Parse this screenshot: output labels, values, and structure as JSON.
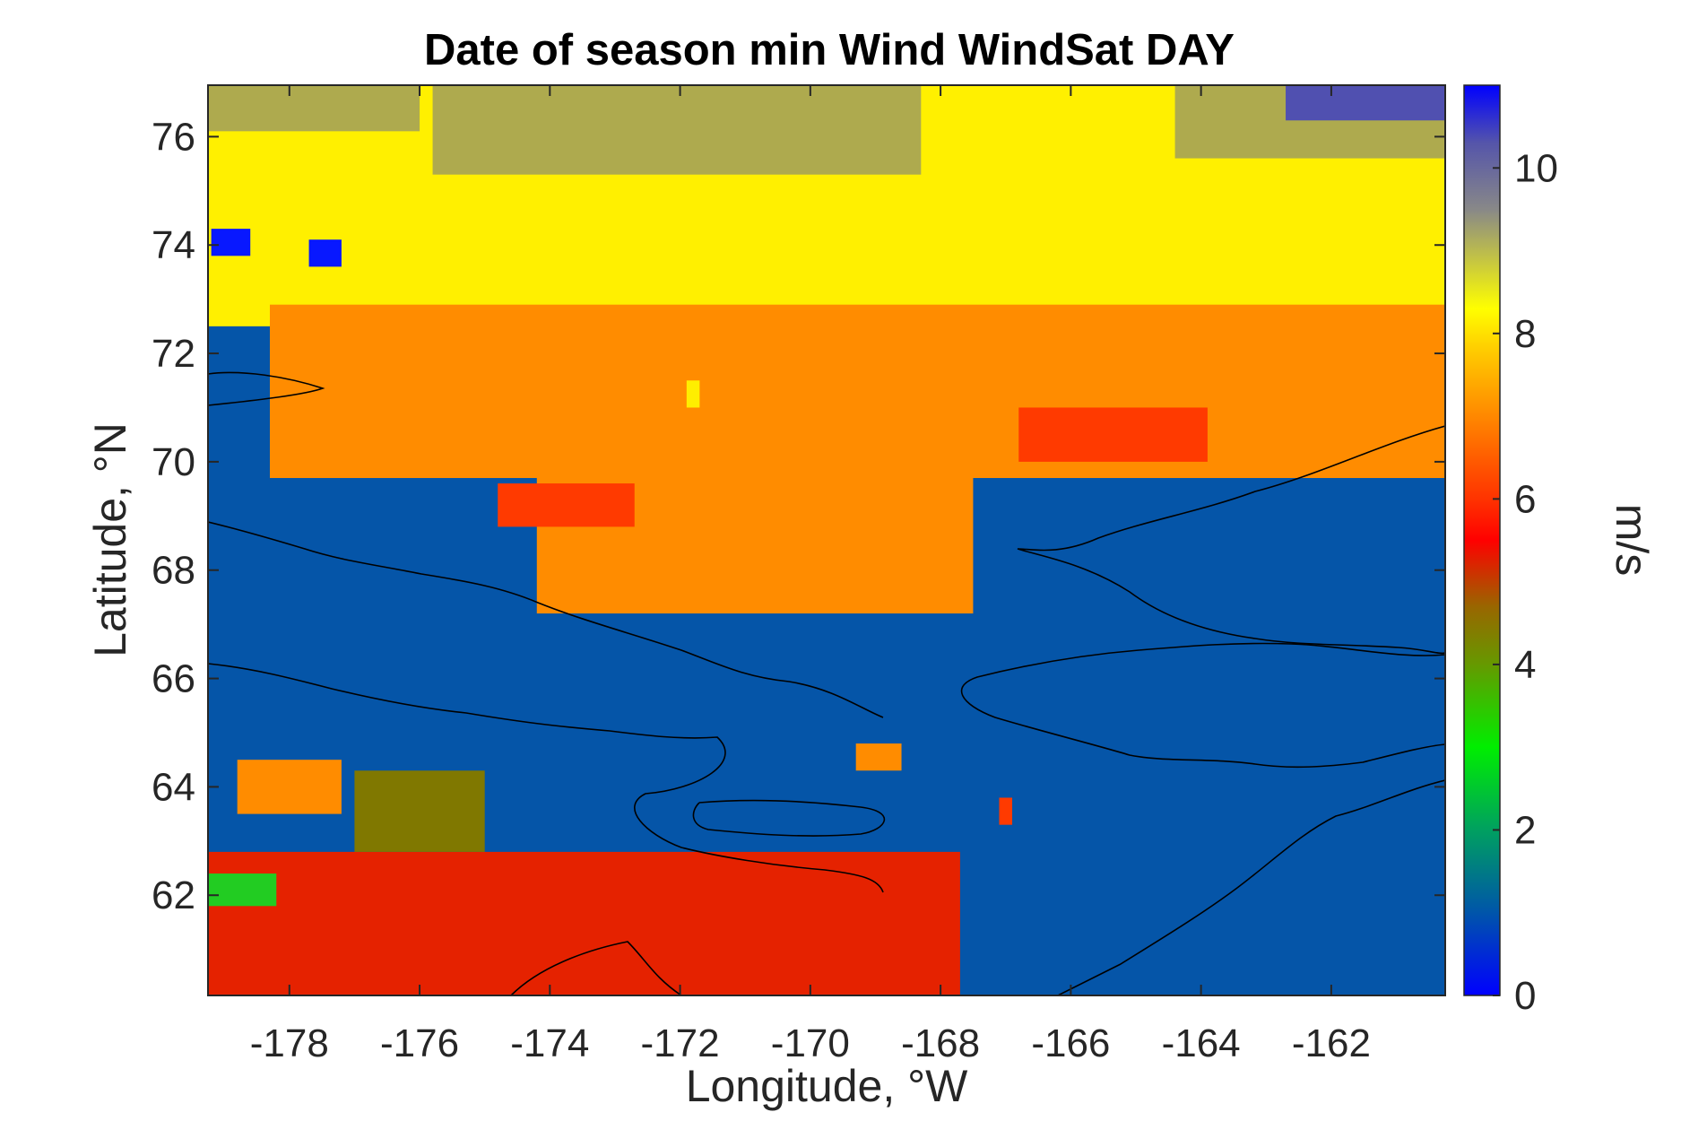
{
  "chart_data": {
    "type": "heatmap",
    "title": "Date of season min Wind WindSat DAY",
    "xlabel": "Longitude, °W",
    "ylabel": "Latitude, °N",
    "xlim": [
      -179.25,
      -160.25
    ],
    "ylim": [
      60.15,
      76.95
    ],
    "xticks": [
      -178,
      -176,
      -174,
      -172,
      -170,
      -168,
      -166,
      -164,
      -162
    ],
    "xtick_labels": [
      "-178",
      "-176",
      "-174",
      "-172",
      "-170",
      "-168",
      "-166",
      "-164",
      "-162"
    ],
    "yticks": [
      62,
      64,
      66,
      68,
      70,
      72,
      74,
      76
    ],
    "ytick_labels": [
      "62",
      "64",
      "66",
      "68",
      "70",
      "72",
      "74",
      "76"
    ],
    "grid": false,
    "colorbar": {
      "label": "m/s",
      "range": [
        0,
        11
      ],
      "ticks": [
        0,
        2,
        4,
        6,
        8,
        10
      ],
      "tick_labels": [
        "0",
        "2",
        "4",
        "6",
        "8",
        "10"
      ],
      "colormap_stops": [
        {
          "value": 0.0,
          "color": "#0000ff"
        },
        {
          "value": 1.0,
          "color": "#0055aa"
        },
        {
          "value": 2.0,
          "color": "#00a060"
        },
        {
          "value": 3.0,
          "color": "#00ee00"
        },
        {
          "value": 4.0,
          "color": "#669900"
        },
        {
          "value": 4.7,
          "color": "#996600"
        },
        {
          "value": 5.5,
          "color": "#ff0000"
        },
        {
          "value": 6.0,
          "color": "#ff3300"
        },
        {
          "value": 7.0,
          "color": "#ff8800"
        },
        {
          "value": 7.8,
          "color": "#ffcc00"
        },
        {
          "value": 8.3,
          "color": "#ffff00"
        },
        {
          "value": 9.5,
          "color": "#888888"
        },
        {
          "value": 10.3,
          "color": "#5555aa"
        },
        {
          "value": 11.0,
          "color": "#0000ff"
        }
      ]
    },
    "regions": [
      {
        "name": "background",
        "value": 1.0,
        "color": "#0555a8",
        "lon": [
          -179.25,
          -160.25
        ],
        "lat": [
          60.15,
          76.95
        ]
      },
      {
        "name": "north-yellow",
        "value": 8.2,
        "color": "#fff000",
        "lon": [
          -179.25,
          -160.25
        ],
        "lat": [
          72.5,
          76.95
        ]
      },
      {
        "name": "olive-nw",
        "value": 9.0,
        "color": "#aeaa4e",
        "lon": [
          -179.25,
          -176.0
        ],
        "lat": [
          76.1,
          76.95
        ]
      },
      {
        "name": "olive-mid",
        "value": 9.0,
        "color": "#aeaa4e",
        "lon": [
          -175.8,
          -168.3
        ],
        "lat": [
          75.3,
          76.95
        ]
      },
      {
        "name": "olive-ne",
        "value": 9.0,
        "color": "#aeaa4e",
        "lon": [
          -164.4,
          -160.25
        ],
        "lat": [
          75.6,
          76.95
        ]
      },
      {
        "name": "slate-ne",
        "value": 10.3,
        "color": "#5050b0",
        "lon": [
          -162.7,
          -160.25
        ],
        "lat": [
          76.3,
          76.95
        ]
      },
      {
        "name": "orange-central",
        "value": 7.0,
        "color": "#ff8c00",
        "lon": [
          -178.3,
          -160.25
        ],
        "lat": [
          69.7,
          72.9
        ]
      },
      {
        "name": "orange-lobe",
        "value": 7.0,
        "color": "#ff8c00",
        "lon": [
          -174.2,
          -167.5
        ],
        "lat": [
          67.2,
          70.5
        ]
      },
      {
        "name": "red-patch-west",
        "value": 6.0,
        "color": "#ff3a00",
        "lon": [
          -174.8,
          -172.7
        ],
        "lat": [
          68.8,
          69.6
        ]
      },
      {
        "name": "red-patch-east",
        "value": 6.0,
        "color": "#ff3a00",
        "lon": [
          -166.8,
          -163.9
        ],
        "lat": [
          70.0,
          71.0
        ]
      },
      {
        "name": "south-red",
        "value": 5.8,
        "color": "#e52200",
        "lon": [
          -179.25,
          -167.7
        ],
        "lat": [
          60.15,
          62.8
        ]
      },
      {
        "name": "south-orange",
        "value": 7.0,
        "color": "#ff8c00",
        "lon": [
          -178.8,
          -177.2
        ],
        "lat": [
          63.5,
          64.5
        ]
      },
      {
        "name": "south-olive",
        "value": 4.2,
        "color": "#807800",
        "lon": [
          -177.0,
          -175.0
        ],
        "lat": [
          62.8,
          64.3
        ]
      },
      {
        "name": "south-green",
        "value": 2.6,
        "color": "#22cc22",
        "lon": [
          -179.25,
          -178.2
        ],
        "lat": [
          61.8,
          62.4
        ]
      },
      {
        "name": "pixel-blue-1",
        "value": 0.2,
        "color": "#0818ff",
        "lon": [
          -179.2,
          -178.6
        ],
        "lat": [
          73.8,
          74.3
        ]
      },
      {
        "name": "pixel-blue-2",
        "value": 0.2,
        "color": "#0818ff",
        "lon": [
          -177.7,
          -177.2
        ],
        "lat": [
          73.6,
          74.1
        ]
      },
      {
        "name": "pixel-orange",
        "value": 7.0,
        "color": "#ff8c00",
        "lon": [
          -169.3,
          -168.6
        ],
        "lat": [
          64.3,
          64.8
        ]
      },
      {
        "name": "pixel-red",
        "value": 6.0,
        "color": "#ff3a00",
        "lon": [
          -167.1,
          -166.9
        ],
        "lat": [
          63.3,
          63.8
        ]
      },
      {
        "name": "pixel-yellow",
        "value": 8.0,
        "color": "#ffee00",
        "lon": [
          -171.9,
          -171.7
        ],
        "lat": [
          71.0,
          71.5
        ]
      }
    ]
  }
}
